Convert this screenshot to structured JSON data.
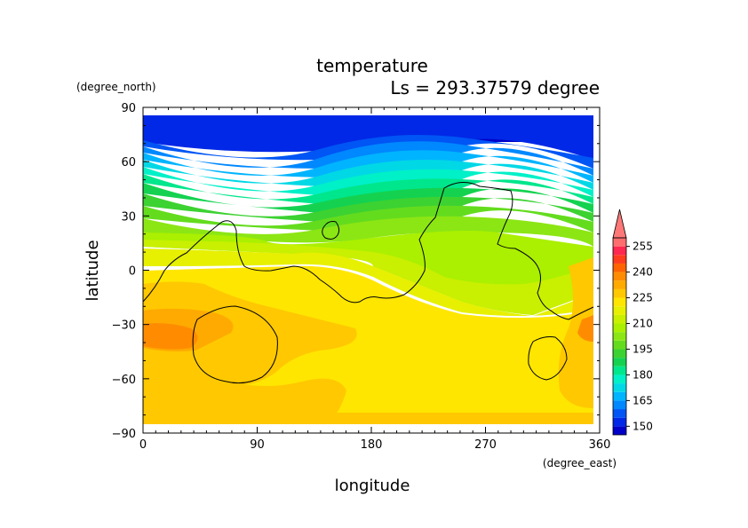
{
  "chart_data": {
    "type": "heatmap",
    "title": "temperature",
    "subtitle": "Ls = 293.37579 degree",
    "xlabel": "longitude",
    "ylabel": "latitude",
    "x_unit": "(degree_east)",
    "y_unit": "(degree_north)",
    "xlim": [
      0,
      360
    ],
    "ylim": [
      -90,
      90
    ],
    "x_ticks": [
      "0",
      "90",
      "180",
      "270",
      "360"
    ],
    "x_tick_values": [
      0,
      90,
      180,
      270,
      360
    ],
    "y_ticks": [
      "90",
      "60",
      "30",
      "0",
      "−30",
      "−60",
      "−90"
    ],
    "y_tick_values": [
      90,
      60,
      30,
      0,
      -30,
      -60,
      -90
    ],
    "colorbar": {
      "levels": [
        145,
        150,
        155,
        160,
        165,
        170,
        175,
        180,
        185,
        190,
        195,
        200,
        205,
        210,
        215,
        220,
        225,
        230,
        235,
        240,
        245,
        250,
        255,
        260
      ],
      "labels": [
        "150",
        "165",
        "180",
        "195",
        "210",
        "225",
        "240",
        "255"
      ],
      "label_values": [
        150,
        165,
        180,
        195,
        210,
        225,
        240,
        255
      ],
      "colors": [
        "#0000c8",
        "#0028e6",
        "#0055f5",
        "#0088ff",
        "#00b4ff",
        "#00d8e6",
        "#00f0c8",
        "#00e68c",
        "#14d250",
        "#3cd232",
        "#64dc1e",
        "#8ce614",
        "#aaf000",
        "#c8f000",
        "#e6f000",
        "#ffe600",
        "#ffc800",
        "#ffaa00",
        "#ff8c00",
        "#ff6400",
        "#ff3c1e",
        "#ff2850",
        "#ff6e6e"
      ],
      "extend_color": "#ff7878"
    },
    "temperature_bands_by_latitude": [
      {
        "lat": 85,
        "value": 147
      },
      {
        "lat": 75,
        "value": 149
      },
      {
        "lat": 65,
        "value": 160
      },
      {
        "lat": 55,
        "value": 178
      },
      {
        "lat": 45,
        "value": 190
      },
      {
        "lat": 35,
        "value": 198
      },
      {
        "lat": 25,
        "value": 206
      },
      {
        "lat": 15,
        "value": 211
      },
      {
        "lat": 5,
        "value": 216
      },
      {
        "lat": -10,
        "value": 222
      },
      {
        "lat": -30,
        "value": 226
      },
      {
        "lat": -50,
        "value": 226
      },
      {
        "lat": -70,
        "value": 228
      },
      {
        "lat": -82,
        "value": 226
      }
    ]
  }
}
